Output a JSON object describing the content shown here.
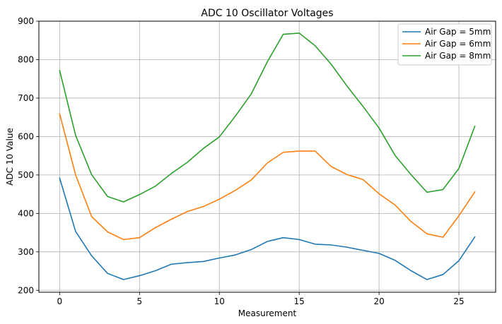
{
  "chart_data": {
    "type": "line",
    "title": "ADC 10 Oscillator Voltages",
    "xlabel": "Measurement",
    "ylabel": "ADC 10 Value",
    "xlim": [
      -1.3,
      27.3
    ],
    "ylim": [
      195,
      900
    ],
    "xticks": [
      0,
      5,
      10,
      15,
      20,
      25
    ],
    "yticks": [
      200,
      300,
      400,
      500,
      600,
      700,
      800,
      900
    ],
    "grid": true,
    "legend_position": "top-right",
    "x": [
      0,
      1,
      2,
      3,
      4,
      5,
      6,
      7,
      8,
      9,
      10,
      11,
      12,
      13,
      14,
      15,
      16,
      17,
      18,
      19,
      20,
      21,
      22,
      23,
      24,
      25,
      26
    ],
    "series": [
      {
        "name": "Air Gap = 5mm",
        "color": "#1f77b4",
        "values": [
          492,
          353,
          290,
          244,
          228,
          238,
          251,
          268,
          272,
          275,
          284,
          292,
          306,
          327,
          337,
          332,
          320,
          318,
          312,
          304,
          296,
          278,
          251,
          228,
          241,
          277,
          339
        ]
      },
      {
        "name": "Air Gap = 6mm",
        "color": "#ff7f0e",
        "values": [
          659,
          500,
          392,
          352,
          332,
          337,
          363,
          385,
          405,
          418,
          437,
          460,
          487,
          531,
          559,
          562,
          562,
          522,
          501,
          488,
          451,
          422,
          379,
          347,
          338,
          394,
          456
        ]
      },
      {
        "name": "Air Gap = 8mm",
        "color": "#2ca02c",
        "values": [
          772,
          603,
          501,
          444,
          430,
          449,
          471,
          504,
          533,
          569,
          599,
          653,
          711,
          794,
          866,
          869,
          836,
          788,
          731,
          678,
          622,
          551,
          501,
          455,
          462,
          517,
          627
        ]
      }
    ]
  }
}
